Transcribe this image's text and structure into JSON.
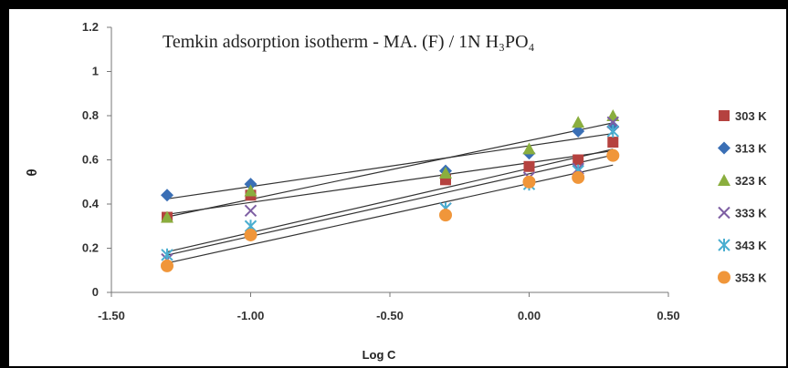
{
  "chart_data": {
    "type": "scatter",
    "title": "Temkin adsorption isotherm - MA. (F) / 1N H₃PO₄",
    "xlabel": "Log C",
    "ylabel": "θ",
    "xlim": [
      -1.5,
      0.5
    ],
    "ylim": [
      0,
      1.2
    ],
    "xticks": [
      "-1.50",
      "-1.00",
      "-0.50",
      "0.00",
      "0.50"
    ],
    "yticks": [
      "0",
      "0.2",
      "0.4",
      "0.6",
      "0.8",
      "1",
      "1.2"
    ],
    "grid": false,
    "legend_position": "right",
    "trendlines": true,
    "series": [
      {
        "name": "303 K",
        "marker": "square",
        "color": "#b5423f",
        "x": [
          -1.3,
          -1.0,
          -0.3,
          0.0,
          0.176,
          0.301
        ],
        "y": [
          0.34,
          0.44,
          0.51,
          0.57,
          0.6,
          0.68
        ]
      },
      {
        "name": "313 K",
        "marker": "diamond",
        "color": "#3a6fb5",
        "x": [
          -1.3,
          -1.0,
          -0.3,
          0.0,
          0.176,
          0.301
        ],
        "y": [
          0.44,
          0.49,
          0.55,
          0.63,
          0.73,
          0.75
        ]
      },
      {
        "name": "323 K",
        "marker": "triangle",
        "color": "#8aae3e",
        "x": [
          -1.3,
          -1.0,
          -0.3,
          0.0,
          0.176,
          0.301
        ],
        "y": [
          0.34,
          0.46,
          0.54,
          0.65,
          0.77,
          0.8
        ]
      },
      {
        "name": "333 K",
        "marker": "x",
        "color": "#7e5fa3",
        "x": [
          -1.3,
          -1.0,
          -0.3,
          0.0,
          0.176,
          0.301
        ],
        "y": [
          0.15,
          0.37,
          0.38,
          0.52,
          0.56,
          0.77
        ]
      },
      {
        "name": "343 K",
        "marker": "star",
        "color": "#4aaed0",
        "x": [
          -1.3,
          -1.0,
          -0.3,
          0.0,
          0.176,
          0.301
        ],
        "y": [
          0.17,
          0.3,
          0.38,
          0.49,
          0.55,
          0.73
        ]
      },
      {
        "name": "353 K",
        "marker": "circle",
        "color": "#f0963a",
        "x": [
          -1.3,
          -1.0,
          -0.3,
          0.0,
          0.176,
          0.301
        ],
        "y": [
          0.12,
          0.26,
          0.35,
          0.5,
          0.52,
          0.62
        ]
      }
    ]
  }
}
